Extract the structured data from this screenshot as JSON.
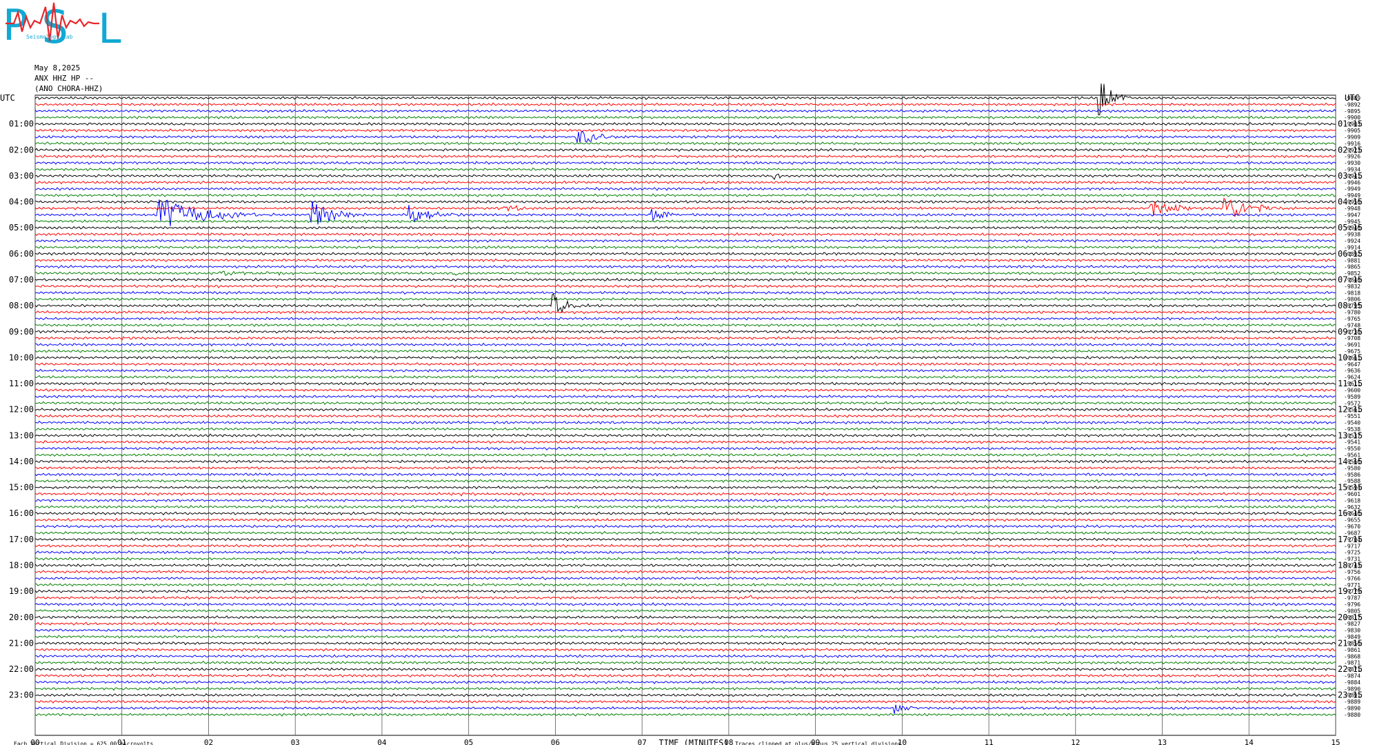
{
  "logo": {
    "letters": "PSL",
    "small_text": "Seismology Lab",
    "colors": {
      "letters": "#11a9d4",
      "trace": "#e8262b"
    }
  },
  "header": {
    "date": "May 8,2025",
    "station": "ANX HHZ HP --",
    "alias": "(ANO CHORA-HHZ)"
  },
  "chart_data": {
    "type": "line",
    "subtype": "helicorder",
    "left_axis_title": "UTC",
    "right_axis_title": "UTC",
    "xlabel": "TIME (MINUTES)",
    "x_ticks": [
      "00",
      "01",
      "02",
      "03",
      "04",
      "05",
      "06",
      "07",
      "08",
      "09",
      "10",
      "11",
      "12",
      "13",
      "14",
      "15"
    ],
    "xlim": [
      0,
      15
    ],
    "grid": true,
    "rows_per_hour": 4,
    "num_rows": 96,
    "trace_colors": [
      "#000000",
      "#ff0000",
      "#0000ff",
      "#008000"
    ],
    "left_hour_labels": [
      "UTC",
      "01:00",
      "02:00",
      "03:00",
      "04:00",
      "05:00",
      "06:00",
      "07:00",
      "08:00",
      "09:00",
      "10:00",
      "11:00",
      "12:00",
      "13:00",
      "14:00",
      "15:00",
      "16:00",
      "17:00",
      "18:00",
      "19:00",
      "20:00",
      "21:00",
      "22:00",
      "23:00"
    ],
    "right_hour_labels": [
      "UTC",
      "01:15",
      "02:15",
      "03:15",
      "04:15",
      "05:15",
      "06:15",
      "07:15",
      "08:15",
      "09:15",
      "10:15",
      "11:15",
      "12:15",
      "13:15",
      "14:15",
      "15:15",
      "16:15",
      "17:15",
      "18:15",
      "19:15",
      "20:15",
      "21:15",
      "22:15",
      "23:15"
    ],
    "row_offsets": [
      "-9889",
      "-9892",
      "-9895",
      "-9900",
      "-9903",
      "-9905",
      "-9909",
      "-9916",
      "-9923",
      "-9926",
      "-9930",
      "-9934",
      "-9941",
      "-9946",
      "-9949",
      "-9949",
      "-9950",
      "-9948",
      "-9947",
      "-9945",
      "-9946",
      "-9938",
      "-9924",
      "-9914",
      "-9892",
      "-9881",
      "-9865",
      "-9852",
      "-9840",
      "-9832",
      "-9818",
      "-9806",
      "-9795",
      "-9780",
      "-9765",
      "-9748",
      "-9730",
      "-9708",
      "-9691",
      "-9675",
      "-9661",
      "-9647",
      "-9636",
      "-9624",
      "-9611",
      "-9600",
      "-9589",
      "-9572",
      "-9561",
      "-9551",
      "-9540",
      "-9538",
      "-9537",
      "-9541",
      "-9550",
      "-9561",
      "-9566",
      "-9580",
      "-9586",
      "-9588",
      "-9594",
      "-9601",
      "-9618",
      "-9632",
      "-9646",
      "-9655",
      "-9670",
      "-9687",
      "-9704",
      "-9717",
      "-9725",
      "-9731",
      "-9743",
      "-9756",
      "-9766",
      "-9771",
      "-9779",
      "-9787",
      "-9796",
      "-9805",
      "-9817",
      "-9827",
      "-9830",
      "-9849",
      "-9856",
      "-9861",
      "-9868",
      "-9871",
      "-9871",
      "-9874",
      "-9884",
      "-9890",
      "-9891",
      "-9889",
      "-9890",
      "-9880"
    ],
    "events": [
      {
        "row": 0,
        "minute": 12.25,
        "amplitude": 4.5,
        "duration_min": 0.4
      },
      {
        "row": 6,
        "minute": 6.25,
        "amplitude": 1.3,
        "duration_min": 0.8
      },
      {
        "row": 12,
        "minute": 8.5,
        "amplitude": 0.6,
        "duration_min": 0.3
      },
      {
        "row": 18,
        "minute": 1.4,
        "amplitude": 3.3,
        "duration_min": 1.4
      },
      {
        "row": 18,
        "minute": 3.15,
        "amplitude": 3.0,
        "duration_min": 0.7
      },
      {
        "row": 18,
        "minute": 4.3,
        "amplitude": 1.9,
        "duration_min": 0.7
      },
      {
        "row": 18,
        "minute": 7.1,
        "amplitude": 1.2,
        "duration_min": 0.5
      },
      {
        "row": 17,
        "minute": 5.4,
        "amplitude": 0.7,
        "duration_min": 0.6
      },
      {
        "row": 17,
        "minute": 12.85,
        "amplitude": 1.4,
        "duration_min": 0.8
      },
      {
        "row": 17,
        "minute": 13.7,
        "amplitude": 2.5,
        "duration_min": 0.8
      },
      {
        "row": 27,
        "minute": 2.1,
        "amplitude": 0.3,
        "duration_min": 2.5
      },
      {
        "row": 27,
        "minute": 4.8,
        "amplitude": 0.6,
        "duration_min": 0.3
      },
      {
        "row": 32,
        "minute": 5.95,
        "amplitude": 2.3,
        "duration_min": 0.5
      },
      {
        "row": 37,
        "minute": 1.0,
        "amplitude": 0.2,
        "duration_min": 0.2
      },
      {
        "row": 61,
        "minute": 4.9,
        "amplitude": 0.4,
        "duration_min": 0.15
      },
      {
        "row": 77,
        "minute": 8.15,
        "amplitude": 0.8,
        "duration_min": 0.35
      },
      {
        "row": 94,
        "minute": 9.9,
        "amplitude": 0.9,
        "duration_min": 0.45
      }
    ]
  },
  "footer": {
    "scale_note": "Each Vertical Division = 625.00 microvolts",
    "clip_note": "Traces clipped at plus/minus 25 vertical divisions"
  }
}
